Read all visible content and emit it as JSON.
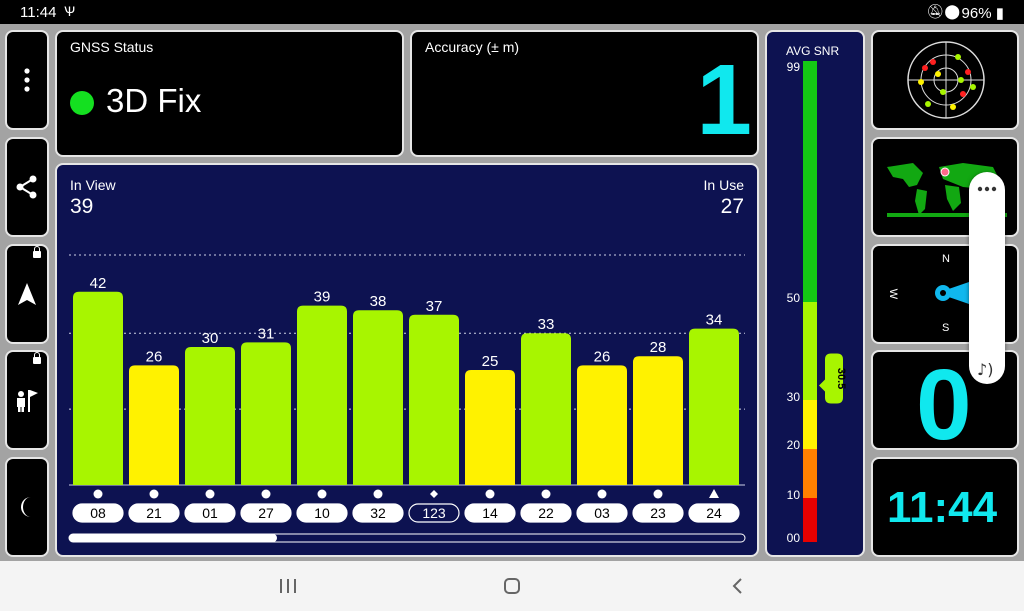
{
  "status_bar": {
    "time": "11:44",
    "battery": "96%"
  },
  "gnss_status": {
    "title": "GNSS Status",
    "fix": "3D Fix",
    "fix_color": "#14e020"
  },
  "accuracy": {
    "title": "Accuracy (± m)",
    "value": "1"
  },
  "in_view": {
    "label": "In View",
    "value": "39"
  },
  "in_use": {
    "label": "In Use",
    "value": "27"
  },
  "chart_data": {
    "type": "bar",
    "categories": [
      "08",
      "21",
      "01",
      "27",
      "10",
      "32",
      "123",
      "14",
      "22",
      "03",
      "23",
      "24"
    ],
    "values": [
      42,
      26,
      30,
      31,
      39,
      38,
      37,
      25,
      33,
      26,
      28,
      34
    ],
    "markers": [
      "circle",
      "circle",
      "circle",
      "circle",
      "circle",
      "circle",
      "diamond",
      "circle",
      "circle",
      "circle",
      "circle",
      "triangle"
    ],
    "ylim": [
      0,
      50
    ],
    "colors": {
      "high": "#a8f500",
      "low": "#fff200"
    },
    "low_threshold": 30
  },
  "avg_snr": {
    "title": "AVG SNR",
    "value": 30.5,
    "value_label": "30.5",
    "ticks": [
      "99",
      "50",
      "30",
      "20",
      "10",
      "00"
    ]
  },
  "speed": {
    "value": "0"
  },
  "clock": {
    "value": "11:44"
  },
  "compass": {
    "north": "N",
    "south": "S",
    "west": "W"
  },
  "icons": [
    "more-vert-icon",
    "share-icon",
    "navigation-icon",
    "map-marker-person-icon",
    "moon-icon",
    "mute-icon",
    "location-icon",
    "battery-icon"
  ]
}
